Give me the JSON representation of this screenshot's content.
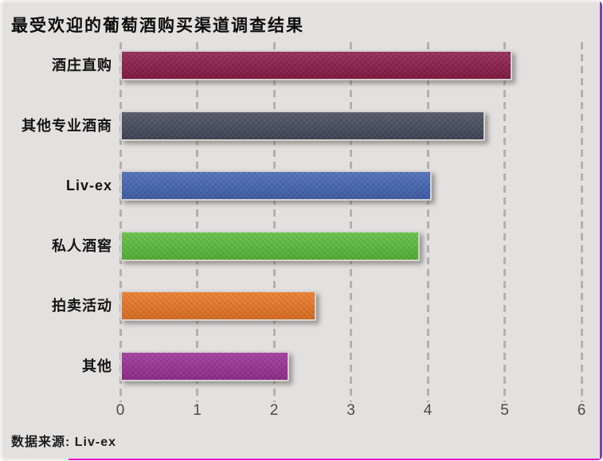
{
  "title": "最受欢迎的葡萄酒购买渠道调查结果",
  "source_note": "数据来源: Liv-ex",
  "chart_data": {
    "type": "bar",
    "orientation": "horizontal",
    "title": "最受欢迎的葡萄酒购买渠道调查结果",
    "categories": [
      "酒庄直购",
      "其他专业酒商",
      "Liv-ex",
      "私人酒窖",
      "拍卖活动",
      "其他"
    ],
    "values": [
      5.1,
      4.75,
      4.05,
      3.9,
      2.55,
      2.2
    ],
    "bar_colors": [
      "#8c1b49",
      "#474a5d",
      "#4465b5",
      "#5bbe3a",
      "#ec7623",
      "#9c2f96"
    ],
    "xlabel": "",
    "ylabel": "",
    "xlim": [
      0,
      6
    ],
    "x_ticks": [
      0,
      1,
      2,
      3,
      4,
      5,
      6
    ],
    "grid": "dashed-vertical-gridlines",
    "legend": "none",
    "source": "数据来源: Liv-ex"
  },
  "colors": {
    "background": "#e3e1e0",
    "gridline": "#b3b0af",
    "bar_border": "#d6d3d2",
    "title_text": "#0d0d0d",
    "tick_text": "#4b4a49",
    "right_accent": "#7e3dac",
    "bottom_accent": "#e812c9"
  }
}
